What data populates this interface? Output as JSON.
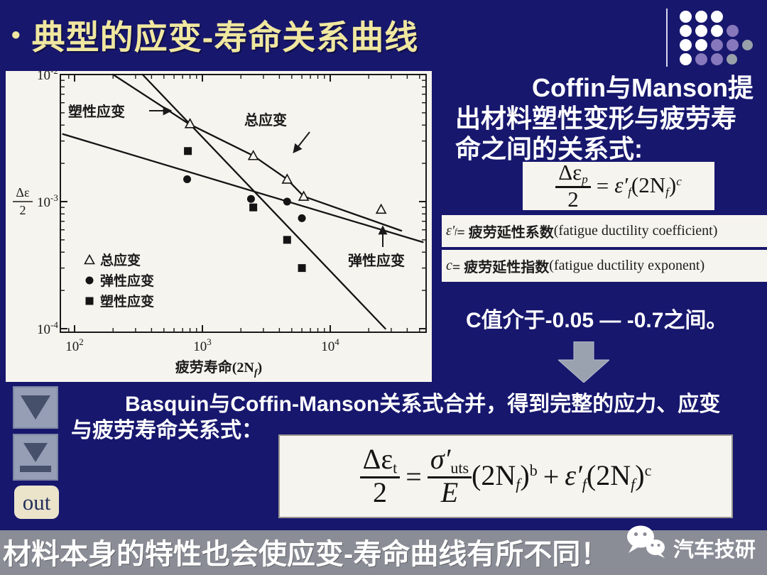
{
  "title": {
    "bullet": "•",
    "text": "典型的应变-寿命关系曲线"
  },
  "logo": {
    "rows": [
      [
        "w",
        "w",
        "w"
      ],
      [
        "w",
        "w",
        "w",
        "p"
      ],
      [
        "w",
        "w",
        "p",
        "p",
        "g"
      ],
      [
        "w",
        "p",
        "p",
        "g"
      ]
    ],
    "colors": {
      "w": "#ffffff",
      "p": "#8678bb",
      "g": "#98a0aa"
    }
  },
  "coffin": {
    "line1": "Coffin与Manson提",
    "line2": "出材料塑性变形与疲劳寿",
    "line3": "命之间的关系式:"
  },
  "formula1": {
    "num": "Δε",
    "num_sub": "p",
    "den": "2",
    "eq": "=",
    "coef": "ε′",
    "coef_sub": "f",
    "term": "(2N",
    "term_sub": "f",
    "term_close": ")",
    "exp": "c"
  },
  "defs": {
    "d1": {
      "sym": "ε′",
      "sub": "f",
      "cn": "= 疲劳延性系数",
      "en": "(fatigue ductility coefficient)"
    },
    "d2": {
      "sym": "c",
      "sub": "",
      "cn": " = 疲劳延性指数",
      "en": "(fatigue ductility exponent)"
    }
  },
  "c_range": "C值介于-0.05 — -0.7之间。",
  "basquin": {
    "line1": "Basquin与Coffin-Manson关系式合并，得到完整的应力、应变",
    "line2": "与疲劳寿命关系式："
  },
  "formula2": {
    "num": "Δε",
    "num_sub": "t",
    "den": "2",
    "eq": "=",
    "f2num": "σ′",
    "f2num_sub": "uts",
    "f2den": "E",
    "t1": "(2N",
    "t1_sub": "f",
    "t1_close": ")",
    "t1_exp": "b",
    "plus": "+",
    "coef": "ε′",
    "coef_sub": "f",
    "t2": "(2N",
    "t2_sub": "f",
    "t2_close": ")",
    "t2_exp": "c"
  },
  "nav": {
    "out": "out"
  },
  "footer": {
    "text": "材料本身的特性也会使应变-寿命曲线有所不同！",
    "brand": "汽车技研"
  },
  "chart_data": {
    "type": "scatter",
    "title": "",
    "xlabel": "疲劳寿命(2Nf)",
    "ylabel": "Δε/2",
    "xlabel_main": "疲劳寿命(2N",
    "xlabel_sub": "f",
    "xlabel_close": ")",
    "ylabel_num": "Δε",
    "ylabel_den": "2",
    "x_tick_exponents": [
      2,
      3,
      4
    ],
    "y_tick_exponents": [
      -2,
      -3,
      -4
    ],
    "xlim": [
      80,
      56000
    ],
    "ylim": [
      0.0001,
      0.01
    ],
    "grid": false,
    "legend_position": "lower-left-inside",
    "series": [
      {
        "name": "总应变",
        "marker": "triangle",
        "x": [
          800,
          2500,
          4600,
          6200,
          25000
        ],
        "y": [
          0.0041,
          0.0023,
          0.0015,
          0.0011,
          0.00087
        ]
      },
      {
        "name": "弹性应变",
        "marker": "circle",
        "x": [
          760,
          2400,
          4600,
          6000
        ],
        "y": [
          0.0015,
          0.00105,
          0.001,
          0.00074
        ]
      },
      {
        "name": "塑性应变",
        "marker": "square",
        "x": [
          770,
          2500,
          4600,
          6000
        ],
        "y": [
          0.0025,
          0.0009,
          0.0005,
          0.0003
        ]
      }
    ],
    "lines": [
      {
        "name": "弹性应变线",
        "points": [
          [
            81,
            0.0034
          ],
          [
            53000,
            0.00048
          ]
        ]
      },
      {
        "name": "塑性应变线",
        "points": [
          [
            340,
            0.01
          ],
          [
            27000,
            0.0001
          ]
        ]
      },
      {
        "name": "总应变曲线",
        "points": [
          [
            200,
            0.01
          ],
          [
            780,
            0.0041
          ],
          [
            2500,
            0.0023
          ],
          [
            4600,
            0.0015
          ],
          [
            6200,
            0.0011
          ],
          [
            36000,
            0.00059
          ]
        ]
      }
    ],
    "annotations": [
      {
        "text": "塑性应变"
      },
      {
        "text": "总应变"
      },
      {
        "text": "弹性应变"
      }
    ],
    "legend": [
      {
        "marker": "triangle",
        "label": "总应变"
      },
      {
        "marker": "circle",
        "label": "弹性应变"
      },
      {
        "marker": "square",
        "label": "塑性应变"
      }
    ]
  }
}
